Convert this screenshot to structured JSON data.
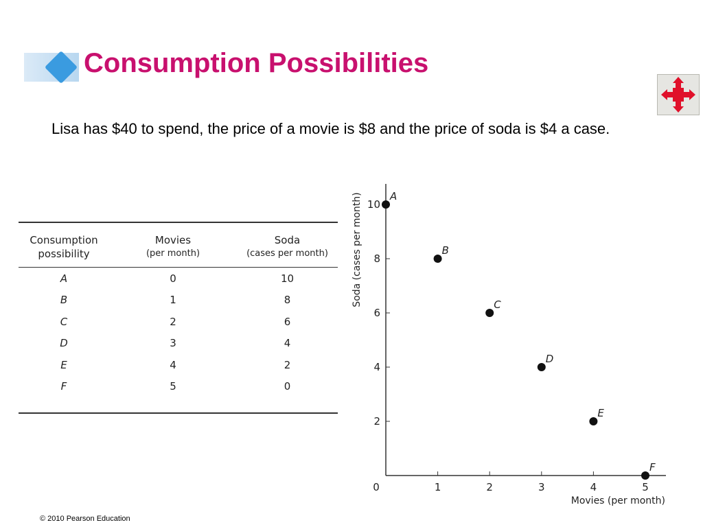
{
  "slide": {
    "title": "Consumption Possibilities",
    "body": "Lisa has $40 to spend, the price of a movie is $8 and the price of soda is $4 a case.",
    "footer": "© 2010 Pearson Education",
    "title_color": "#c8106e",
    "nav_icon": "move-arrows-icon"
  },
  "table": {
    "headers": [
      {
        "main": "Consumption",
        "sub": "possibility"
      },
      {
        "main": "Movies",
        "sub": "(per month)"
      },
      {
        "main": "Soda",
        "sub": "(cases per month)"
      }
    ],
    "rows": [
      [
        "A",
        "0",
        "10"
      ],
      [
        "B",
        "1",
        "8"
      ],
      [
        "C",
        "2",
        "6"
      ],
      [
        "D",
        "3",
        "4"
      ],
      [
        "E",
        "4",
        "2"
      ],
      [
        "F",
        "5",
        "0"
      ]
    ]
  },
  "chart_data": {
    "type": "scatter",
    "xlabel": "Movies (per month)",
    "ylabel": "Soda (cases per month)",
    "x_ticks": [
      0,
      1,
      2,
      3,
      4,
      5
    ],
    "y_ticks": [
      2,
      4,
      6,
      8,
      10
    ],
    "xlim": [
      0,
      5.4
    ],
    "ylim": [
      0,
      10.7
    ],
    "grid": false,
    "points": [
      {
        "label": "A",
        "x": 0,
        "y": 10
      },
      {
        "label": "B",
        "x": 1,
        "y": 8
      },
      {
        "label": "C",
        "x": 2,
        "y": 6
      },
      {
        "label": "D",
        "x": 3,
        "y": 4
      },
      {
        "label": "E",
        "x": 4,
        "y": 2
      },
      {
        "label": "F",
        "x": 5,
        "y": 0
      }
    ],
    "point_color": "#111111"
  }
}
